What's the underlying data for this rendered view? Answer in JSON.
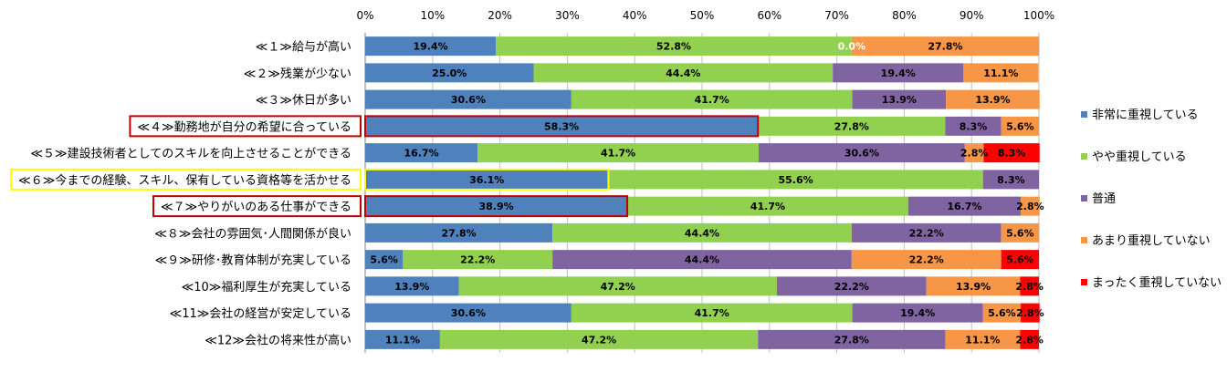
{
  "chart_data": {
    "type": "bar",
    "orientation": "horizontal",
    "stacked": "100%",
    "categories": [
      "≪１≫給与が高い",
      "≪２≫残業が少ない",
      "≪３≫休日が多い",
      "≪４≫勤務地が自分の希望に合っている",
      "≪５≫建設技術者としてのスキルを向上させることができる",
      "≪６≫今までの経験、スキル、保有している資格等を活かせる",
      "≪７≫やりがいのある仕事ができる",
      "≪８≫会社の雰囲気･人間関係が良い",
      "≪９≫研修･教育体制が充実している",
      "≪10≫福利厚生が充実している",
      "≪11≫会社の経営が安定している",
      "≪12≫会社の将来性が高い"
    ],
    "series": [
      {
        "name": "非常に重視している",
        "color": "#4f81bd",
        "values": [
          19.4,
          25.0,
          30.6,
          58.3,
          16.7,
          36.1,
          38.9,
          27.8,
          5.6,
          13.9,
          30.6,
          11.1
        ]
      },
      {
        "name": "やや重視している",
        "color": "#92d050",
        "values": [
          52.8,
          44.4,
          41.7,
          27.8,
          41.7,
          55.6,
          41.7,
          44.4,
          22.2,
          47.2,
          41.7,
          47.2
        ]
      },
      {
        "name": "普通",
        "color": "#8064a2",
        "values": [
          0.0,
          19.4,
          13.9,
          8.3,
          30.6,
          8.3,
          16.7,
          22.2,
          44.4,
          22.2,
          19.4,
          27.8
        ]
      },
      {
        "name": "あまり重視していない",
        "color": "#f79646",
        "values": [
          27.8,
          11.1,
          13.9,
          5.6,
          2.8,
          0,
          2.8,
          5.6,
          22.2,
          13.9,
          5.6,
          11.1
        ]
      },
      {
        "name": "まったく重視していない",
        "color": "#ff0000",
        "values": [
          0,
          0,
          0,
          0,
          8.3,
          0,
          0,
          0,
          5.6,
          2.8,
          2.8,
          2.8
        ]
      }
    ],
    "xlim": [
      0,
      100
    ],
    "x_ticks": [
      "0%",
      "10%",
      "20%",
      "30%",
      "40%",
      "50%",
      "60%",
      "70%",
      "80%",
      "90%",
      "100%"
    ],
    "grid": true,
    "legend_position": "right",
    "highlighted_categories": [
      {
        "index": 3,
        "color": "#c00000"
      },
      {
        "index": 5,
        "color": "#ffff00"
      },
      {
        "index": 6,
        "color": "#c00000"
      }
    ]
  }
}
